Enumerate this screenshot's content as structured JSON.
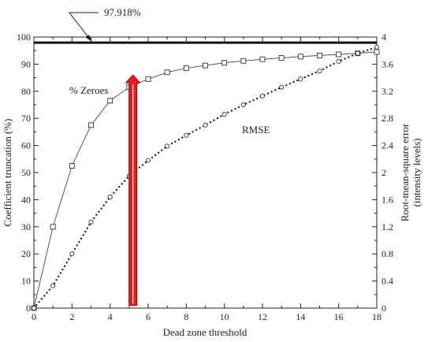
{
  "chart_data": {
    "type": "line",
    "xlabel": "Dead zone threshold",
    "ylabel_left": "Coefficient truncation (%)",
    "ylabel_right_lines": [
      "Root-mean-square error",
      "(intensity levels)"
    ],
    "xlim": [
      0,
      18
    ],
    "ylim_left": [
      0,
      100
    ],
    "ylim_right": [
      0,
      4
    ],
    "x_ticks": [
      "0",
      "2",
      "4",
      "6",
      "8",
      "10",
      "12",
      "14",
      "16",
      "18"
    ],
    "y_ticks_left": [
      "0",
      "10",
      "20",
      "30",
      "40",
      "50",
      "60",
      "70",
      "80",
      "90",
      "100"
    ],
    "y_ticks_right": [
      "0",
      "0.4",
      "0.8",
      "1.2",
      "1.6",
      "2",
      "2.4",
      "2.8",
      "3.2",
      "3.6",
      "4"
    ],
    "grid": false,
    "series": [
      {
        "name": "% Zeroes",
        "axis": "left",
        "style": "solid",
        "marker": "square",
        "x": [
          0,
          1,
          2,
          3,
          4,
          5,
          6,
          7,
          8,
          9,
          10,
          11,
          12,
          13,
          14,
          15,
          16,
          17,
          18
        ],
        "y": [
          0,
          30,
          52.5,
          67.5,
          76.5,
          81.5,
          84.5,
          87,
          88.5,
          89.5,
          90.5,
          91.2,
          91.8,
          92.3,
          92.8,
          93.2,
          93.6,
          94,
          94.5
        ]
      },
      {
        "name": "RMSE",
        "axis": "right",
        "style": "dotted",
        "marker": "circle",
        "x": [
          0,
          1,
          2,
          3,
          4,
          5,
          6,
          7,
          8,
          9,
          10,
          11,
          12,
          13,
          14,
          15,
          16,
          17,
          18
        ],
        "y": [
          0,
          0.33,
          0.8,
          1.27,
          1.64,
          1.95,
          2.18,
          2.39,
          2.55,
          2.7,
          2.86,
          3.0,
          3.13,
          3.26,
          3.38,
          3.5,
          3.64,
          3.76,
          3.85
        ]
      }
    ],
    "reference_line": {
      "label": "97.918%",
      "value": 97.918,
      "axis": "left"
    },
    "arrow": {
      "x": 5.2,
      "from": 1,
      "to": 86,
      "axis": "left",
      "color": "#e41a1c"
    }
  }
}
